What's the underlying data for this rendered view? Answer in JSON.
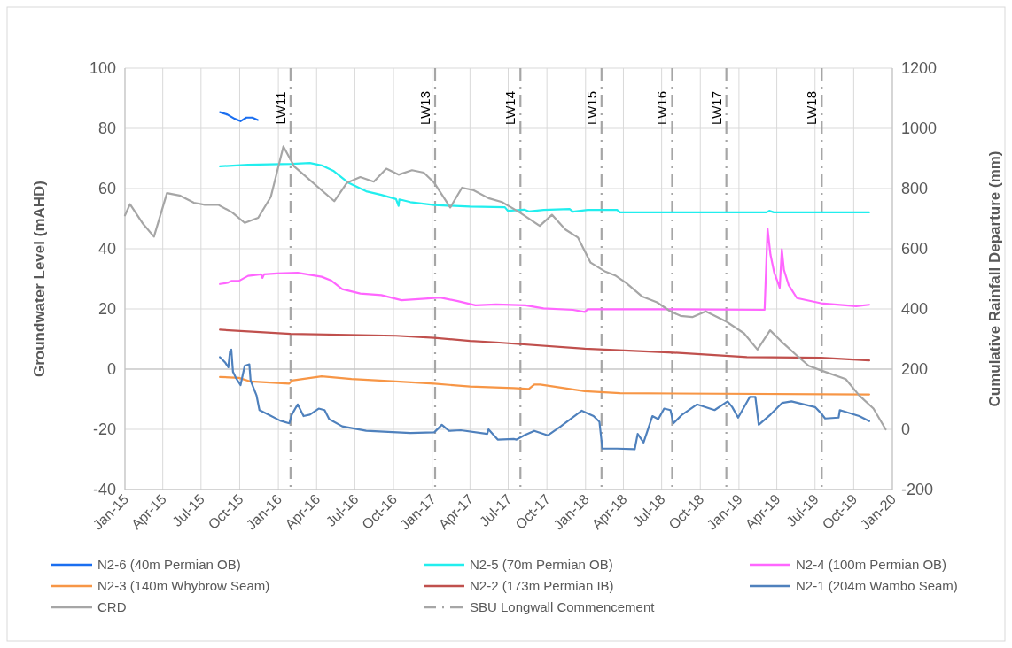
{
  "chart_data": {
    "type": "line",
    "ylabel": "Groundwater Level (mAHD)",
    "y2label": "Cumulative Rainfall Departure (mm)",
    "xlim": [
      "2015-01-01",
      "2020-01-01"
    ],
    "xticks": [
      {
        "value": "2015-01",
        "label": "Jan-15"
      },
      {
        "value": "2015-04",
        "label": "Apr-15"
      },
      {
        "value": "2015-07",
        "label": "Jul-15"
      },
      {
        "value": "2015-10",
        "label": "Oct-15"
      },
      {
        "value": "2016-01",
        "label": "Jan-16"
      },
      {
        "value": "2016-04",
        "label": "Apr-16"
      },
      {
        "value": "2016-07",
        "label": "Jul-16"
      },
      {
        "value": "2016-10",
        "label": "Oct-16"
      },
      {
        "value": "2017-01",
        "label": "Jan-17"
      },
      {
        "value": "2017-04",
        "label": "Apr-17"
      },
      {
        "value": "2017-07",
        "label": "Jul-17"
      },
      {
        "value": "2017-10",
        "label": "Oct-17"
      },
      {
        "value": "2018-01",
        "label": "Jan-18"
      },
      {
        "value": "2018-04",
        "label": "Apr-18"
      },
      {
        "value": "2018-07",
        "label": "Jul-18"
      },
      {
        "value": "2018-10",
        "label": "Oct-18"
      },
      {
        "value": "2019-01",
        "label": "Jan-19"
      },
      {
        "value": "2019-04",
        "label": "Apr-19"
      },
      {
        "value": "2019-07",
        "label": "Jul-19"
      },
      {
        "value": "2019-10",
        "label": "Oct-19"
      },
      {
        "value": "2020-01",
        "label": "Jan-20"
      }
    ],
    "ylim": [
      -40,
      100
    ],
    "yticks": [
      -40,
      -20,
      0,
      20,
      40,
      60,
      80,
      100
    ],
    "y2lim": [
      -200,
      1200
    ],
    "y2ticks": [
      -200,
      0,
      200,
      400,
      600,
      800,
      1000,
      1200
    ],
    "grid": true,
    "legend": "bottom",
    "marker": "none",
    "series": [
      {
        "name": "N2-6 (40m Permian OB)",
        "color": "#1a6ef0",
        "x": [
          "2015-08-15",
          "2015-09-02",
          "2015-09-19",
          "2015-10-03",
          "2015-10-17",
          "2015-10-31",
          "2015-11-13"
        ],
        "values": [
          85.4,
          84.6,
          83.2,
          82.4,
          83.6,
          83.6,
          82.8
        ]
      },
      {
        "name": "N2-5 (70m Permian OB)",
        "color": "#22eeee",
        "x": [
          "2015-08-15",
          "2015-10-21",
          "2016-02-02",
          "2016-03-16",
          "2016-04-13",
          "2016-05-12",
          "2016-06-16",
          "2016-07-28",
          "2016-09-02",
          "2016-10-07",
          "2016-10-13",
          "2016-10-15",
          "2016-11-10",
          "2017-01-06",
          "2017-04-01",
          "2017-06-23",
          "2017-06-30",
          "2017-08-08",
          "2017-08-19",
          "2017-09-23",
          "2017-11-24",
          "2017-12-02",
          "2018-01-06",
          "2018-03-17",
          "2018-03-24",
          "2019-03-07",
          "2019-03-14",
          "2019-03-25",
          "2019-11-07"
        ],
        "values": [
          67.4,
          67.9,
          68.2,
          68.5,
          67.7,
          65.8,
          61.9,
          59.1,
          57.9,
          56.5,
          54.2,
          56.4,
          55.5,
          54.5,
          54.0,
          53.8,
          52.6,
          53.0,
          52.4,
          52.9,
          53.2,
          52.3,
          52.9,
          52.9,
          52.1,
          52.1,
          52.6,
          52.1,
          52.1
        ]
      },
      {
        "name": "N2-4 (100m Permian OB)",
        "color": "#ff66ff",
        "x": [
          "2015-08-15",
          "2015-09-02",
          "2015-09-11",
          "2015-09-29",
          "2015-10-21",
          "2015-11-21",
          "2015-11-24",
          "2015-11-28",
          "2015-12-29",
          "2016-02-16",
          "2016-04-13",
          "2016-05-05",
          "2016-06-01",
          "2016-07-14",
          "2016-09-02",
          "2016-10-20",
          "2016-12-15",
          "2017-01-20",
          "2017-03-03",
          "2017-04-14",
          "2017-06-02",
          "2017-08-11",
          "2017-09-23",
          "2017-12-02",
          "2017-12-30",
          "2018-01-06",
          "2018-07-29",
          "2019-03-03",
          "2019-03-10",
          "2019-03-17",
          "2019-03-26",
          "2019-04-03",
          "2019-04-08",
          "2019-04-13",
          "2019-04-18",
          "2019-04-29",
          "2019-05-19",
          "2019-07-15",
          "2019-10-07",
          "2019-11-07"
        ],
        "values": [
          28.3,
          28.7,
          29.3,
          29.3,
          31.0,
          31.5,
          30.3,
          31.5,
          31.8,
          32.0,
          30.7,
          29.5,
          26.6,
          25.1,
          24.6,
          22.9,
          23.4,
          23.8,
          22.6,
          21.2,
          21.5,
          21.2,
          20.2,
          19.7,
          19.0,
          19.9,
          19.9,
          19.7,
          46.7,
          38,
          32,
          29,
          27,
          39.8,
          33,
          28,
          23.6,
          21.9,
          20.9,
          21.4
        ]
      },
      {
        "name": "N2-3 (140m Whybrow Seam)",
        "color": "#f79646",
        "x": [
          "2015-08-15",
          "2015-09-29",
          "2015-10-27",
          "2016-01-27",
          "2016-02-02",
          "2016-04-13",
          "2016-06-23",
          "2016-10-07",
          "2017-01-06",
          "2017-04-01",
          "2017-07-14",
          "2017-08-19",
          "2017-09-01",
          "2017-09-15",
          "2017-12-30",
          "2018-03-24",
          "2019-11-07"
        ],
        "values": [
          -2.6,
          -2.9,
          -4.1,
          -4.8,
          -3.8,
          -2.4,
          -3.3,
          -4.1,
          -4.8,
          -5.8,
          -6.3,
          -6.6,
          -5.1,
          -5.1,
          -7.3,
          -8.0,
          -8.4
        ]
      },
      {
        "name": "N2-2 (173m Permian IB)",
        "color": "#c0504d",
        "x": [
          "2015-08-15",
          "2016-01-30",
          "2016-10-07",
          "2017-01-06",
          "2017-04-01",
          "2017-06-02",
          "2017-12-30",
          "2018-07-29",
          "2019-01-20",
          "2019-07-15",
          "2019-11-07"
        ],
        "values": [
          13.1,
          11.7,
          11.1,
          10.4,
          9.4,
          8.9,
          6.8,
          5.5,
          4.0,
          3.8,
          2.9
        ]
      },
      {
        "name": "N2-1 (204m Wambo Seam)",
        "color": "#4f81bd",
        "x": [
          "2015-08-15",
          "2015-08-28",
          "2015-09-04",
          "2015-09-08",
          "2015-09-11",
          "2015-09-15",
          "2015-09-22",
          "2015-10-03",
          "2015-10-13",
          "2015-10-24",
          "2015-10-27",
          "2015-11-10",
          "2015-11-17",
          "2015-12-08",
          "2016-01-05",
          "2016-01-27",
          "2016-02-02",
          "2016-02-16",
          "2016-03-01",
          "2016-03-16",
          "2016-04-06",
          "2016-04-20",
          "2016-05-01",
          "2016-06-01",
          "2016-07-28",
          "2016-11-10",
          "2017-01-06",
          "2017-01-24",
          "2017-02-10",
          "2017-03-10",
          "2017-05-12",
          "2017-05-15",
          "2017-06-06",
          "2017-07-14",
          "2017-07-21",
          "2017-08-08",
          "2017-09-01",
          "2017-10-03",
          "2017-11-03",
          "2017-12-23",
          "2018-01-20",
          "2018-02-03",
          "2018-02-10",
          "2018-03-17",
          "2018-04-28",
          "2018-05-05",
          "2018-05-19",
          "2018-06-09",
          "2018-06-23",
          "2018-07-07",
          "2018-07-22",
          "2018-07-29",
          "2018-08-19",
          "2018-09-23",
          "2018-11-04",
          "2018-12-05",
          "2018-12-16",
          "2018-12-30",
          "2019-01-27",
          "2019-02-09",
          "2019-02-17",
          "2019-03-17",
          "2019-04-14",
          "2019-05-06",
          "2019-07-01",
          "2019-07-15",
          "2019-07-25",
          "2019-08-26",
          "2019-08-29",
          "2019-10-14",
          "2019-11-07"
        ],
        "values": [
          4.0,
          2.1,
          0.6,
          6.0,
          6.5,
          -0.9,
          -2.9,
          -5.3,
          1.1,
          1.6,
          -3.8,
          -8.7,
          -13.6,
          -15.1,
          -17.1,
          -18.0,
          -15.1,
          -11.7,
          -15.6,
          -15.1,
          -13.1,
          -13.6,
          -16.6,
          -19.0,
          -20.5,
          -21.2,
          -21.0,
          -18.5,
          -20.5,
          -20.3,
          -21.5,
          -20.0,
          -23.4,
          -23.2,
          -23.4,
          -22.0,
          -20.5,
          -22.0,
          -19.0,
          -13.8,
          -15.6,
          -17.5,
          -26.4,
          -26.4,
          -26.6,
          -21.5,
          -24.4,
          -15.6,
          -16.6,
          -13.1,
          -13.6,
          -18.0,
          -15.1,
          -11.7,
          -13.6,
          -10.7,
          -12.6,
          -16.1,
          -9.2,
          -9.2,
          -18.5,
          -15.1,
          -11.2,
          -10.7,
          -12.6,
          -14.6,
          -16.4,
          -16.1,
          -13.6,
          -15.6,
          -17.3
        ]
      },
      {
        "name": "CRD",
        "color": "#a6a6a6",
        "axis": "y2",
        "x": [
          "2015-01-01",
          "2015-01-13",
          "2015-02-13",
          "2015-03-11",
          "2015-04-11",
          "2015-05-11",
          "2015-06-14",
          "2015-07-10",
          "2015-08-11",
          "2015-09-13",
          "2015-10-13",
          "2015-11-14",
          "2015-12-14",
          "2016-01-13",
          "2016-02-08",
          "2016-05-13",
          "2016-06-12",
          "2016-07-14",
          "2016-08-15",
          "2016-09-14",
          "2016-10-13",
          "2016-11-14",
          "2016-12-12",
          "2017-01-06",
          "2017-02-13",
          "2017-03-13",
          "2017-04-10",
          "2017-05-15",
          "2017-06-16",
          "2017-07-28",
          "2017-09-14",
          "2017-10-13",
          "2017-11-14",
          "2017-12-14",
          "2018-01-13",
          "2018-02-17",
          "2018-03-14",
          "2018-04-07",
          "2018-05-16",
          "2018-06-20",
          "2018-07-22",
          "2018-08-15",
          "2018-09-12",
          "2018-10-14",
          "2018-12-02",
          "2019-01-13",
          "2019-02-14",
          "2019-03-16",
          "2019-04-18",
          "2019-05-19",
          "2019-06-16",
          "2019-07-15",
          "2019-09-12",
          "2019-10-14",
          "2019-11-17",
          "2019-12-16"
        ],
        "values": [
          711,
          748,
          683,
          640,
          785,
          777,
          753,
          746,
          746,
          721,
          686,
          703,
          772,
          940,
          873,
          758,
          819,
          838,
          823,
          866,
          846,
          861,
          853,
          819,
          737,
          803,
          794,
          768,
          755,
          721,
          676,
          713,
          664,
          637,
          554,
          524,
          510,
          487,
          441,
          422,
          392,
          377,
          373,
          392,
          358,
          319,
          265,
          329,
          284,
          245,
          211,
          196,
          167,
          113,
          69,
          0
        ]
      }
    ],
    "ref_lines": [
      {
        "axis": "x",
        "value": "2016-01-30",
        "label": "LW11",
        "color": "#a6a6a6",
        "line_style": "dashdot"
      },
      {
        "axis": "x",
        "value": "2017-01-08",
        "label": "LW13",
        "color": "#a6a6a6",
        "line_style": "dashdot"
      },
      {
        "axis": "x",
        "value": "2017-07-30",
        "label": "LW14",
        "color": "#a6a6a6",
        "line_style": "dashdot"
      },
      {
        "axis": "x",
        "value": "2018-02-08",
        "label": "LW15",
        "color": "#a6a6a6",
        "line_style": "dashdot"
      },
      {
        "axis": "x",
        "value": "2018-07-26",
        "label": "LW16",
        "color": "#a6a6a6",
        "line_style": "dashdot"
      },
      {
        "axis": "x",
        "value": "2018-12-02",
        "label": "LW17",
        "color": "#a6a6a6",
        "line_style": "dashdot"
      },
      {
        "axis": "x",
        "value": "2019-07-17",
        "label": "LW18",
        "color": "#a6a6a6",
        "line_style": "dashdot"
      }
    ],
    "annotations": [
      "SBU Longwall Commencement"
    ]
  }
}
